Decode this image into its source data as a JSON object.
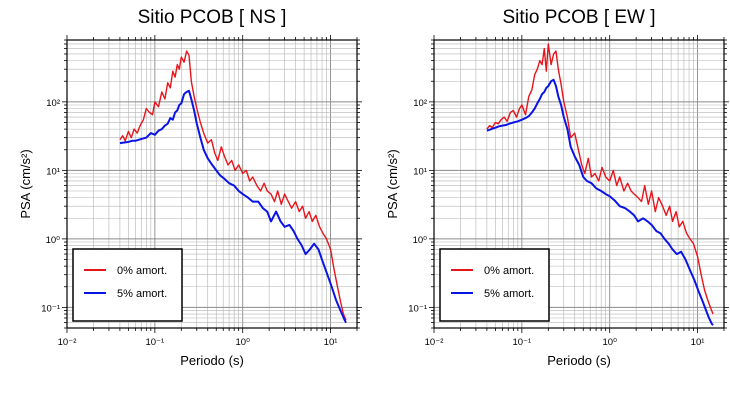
{
  "chart_data": [
    {
      "type": "line",
      "title": "Sitio PCOB [ NS ]",
      "xlabel": "Periodo (s)",
      "ylabel": "PSA (cm/s²)",
      "x_scale": "log",
      "y_scale": "log",
      "xlim": [
        0.01,
        20
      ],
      "ylim": [
        0.05,
        800
      ],
      "x_ticks": [
        "10⁻²",
        "10⁻¹",
        "10⁰",
        "10¹"
      ],
      "y_ticks": [
        "10⁻¹",
        "10⁰",
        "10¹",
        "10²"
      ],
      "grid": true,
      "legend_position": "bottom-left",
      "series": [
        {
          "name": "0% amort.",
          "color": "#e8141b",
          "x": [
            0.04,
            0.043,
            0.046,
            0.05,
            0.054,
            0.058,
            0.063,
            0.068,
            0.074,
            0.08,
            0.087,
            0.094,
            0.1,
            0.11,
            0.12,
            0.13,
            0.14,
            0.15,
            0.16,
            0.17,
            0.18,
            0.19,
            0.2,
            0.215,
            0.23,
            0.245,
            0.26,
            0.28,
            0.3,
            0.33,
            0.36,
            0.4,
            0.44,
            0.48,
            0.52,
            0.57,
            0.62,
            0.68,
            0.75,
            0.82,
            0.9,
            1.0,
            1.1,
            1.2,
            1.3,
            1.45,
            1.6,
            1.75,
            1.9,
            2.1,
            2.3,
            2.5,
            2.75,
            3.0,
            3.3,
            3.6,
            4.0,
            4.4,
            4.8,
            5.2,
            5.7,
            6.2,
            6.8,
            7.5,
            8.2,
            9.0,
            10.0,
            11.0,
            12.0,
            13.0,
            14.0,
            15.0
          ],
          "values": [
            28,
            32,
            27,
            37,
            30,
            40,
            35,
            45,
            55,
            80,
            70,
            65,
            100,
            85,
            140,
            110,
            190,
            160,
            280,
            230,
            350,
            300,
            450,
            380,
            550,
            480,
            200,
            120,
            80,
            50,
            35,
            25,
            28,
            18,
            14,
            22,
            16,
            12,
            14,
            10,
            12,
            9,
            10,
            7,
            8,
            6,
            5,
            6.5,
            5,
            4.5,
            3.5,
            5,
            3.2,
            4.5,
            3.5,
            2.8,
            3.5,
            2.5,
            3,
            2,
            2.5,
            1.8,
            2.2,
            1.5,
            1.2,
            1.0,
            0.7,
            0.35,
            0.2,
            0.12,
            0.08,
            0.065
          ]
        },
        {
          "name": "5% amort.",
          "color": "#0a14e6",
          "x": [
            0.04,
            0.045,
            0.05,
            0.055,
            0.06,
            0.066,
            0.072,
            0.08,
            0.09,
            0.1,
            0.11,
            0.12,
            0.13,
            0.14,
            0.15,
            0.16,
            0.17,
            0.18,
            0.19,
            0.2,
            0.215,
            0.23,
            0.245,
            0.26,
            0.28,
            0.3,
            0.33,
            0.36,
            0.4,
            0.45,
            0.5,
            0.55,
            0.62,
            0.7,
            0.8,
            0.9,
            1.0,
            1.15,
            1.3,
            1.5,
            1.7,
            1.9,
            2.1,
            2.4,
            2.7,
            3.0,
            3.4,
            3.8,
            4.2,
            4.7,
            5.2,
            5.8,
            6.5,
            7.3,
            8.2,
            9.2,
            10.3,
            11.5,
            12.5,
            13.5,
            14.5,
            15.0
          ],
          "values": [
            25,
            25.5,
            26,
            27,
            27,
            28,
            29,
            30,
            35,
            33,
            38,
            40,
            45,
            48,
            58,
            55,
            70,
            75,
            90,
            95,
            130,
            140,
            145,
            110,
            75,
            48,
            30,
            20,
            15,
            12,
            10,
            8.5,
            7.5,
            6.5,
            6,
            5,
            4.5,
            4,
            3.5,
            3.5,
            2.8,
            2.5,
            1.8,
            2.5,
            1.8,
            1.5,
            1.6,
            1.3,
            1.0,
            0.8,
            0.6,
            0.7,
            0.85,
            0.7,
            0.45,
            0.3,
            0.2,
            0.13,
            0.1,
            0.08,
            0.065,
            0.06
          ]
        }
      ]
    },
    {
      "type": "line",
      "title": "Sitio PCOB [ EW ]",
      "xlabel": "Periodo (s)",
      "ylabel": "PSA (cm/s²)",
      "x_scale": "log",
      "y_scale": "log",
      "xlim": [
        0.01,
        20
      ],
      "ylim": [
        0.05,
        800
      ],
      "x_ticks": [
        "10⁻²",
        "10⁻¹",
        "10⁰",
        "10¹"
      ],
      "y_ticks": [
        "10⁻¹",
        "10⁰",
        "10¹",
        "10²"
      ],
      "grid": true,
      "legend_position": "bottom-left",
      "series": [
        {
          "name": "0% amort.",
          "color": "#e8141b",
          "x": [
            0.04,
            0.043,
            0.046,
            0.05,
            0.054,
            0.058,
            0.063,
            0.068,
            0.074,
            0.08,
            0.087,
            0.094,
            0.1,
            0.11,
            0.12,
            0.13,
            0.14,
            0.15,
            0.16,
            0.17,
            0.18,
            0.19,
            0.2,
            0.215,
            0.23,
            0.245,
            0.26,
            0.28,
            0.3,
            0.33,
            0.36,
            0.4,
            0.44,
            0.48,
            0.52,
            0.57,
            0.62,
            0.68,
            0.75,
            0.82,
            0.9,
            1.0,
            1.1,
            1.2,
            1.3,
            1.45,
            1.6,
            1.75,
            1.9,
            2.1,
            2.3,
            2.5,
            2.75,
            3.0,
            3.3,
            3.6,
            4.0,
            4.4,
            4.8,
            5.2,
            5.7,
            6.2,
            6.8,
            7.5,
            8.2,
            9.0,
            10.0,
            11.0,
            12.0,
            13.0,
            14.0,
            15.0
          ],
          "values": [
            40,
            45,
            42,
            50,
            48,
            55,
            60,
            52,
            70,
            75,
            60,
            80,
            90,
            65,
            120,
            150,
            250,
            300,
            400,
            350,
            600,
            280,
            700,
            350,
            500,
            550,
            300,
            180,
            100,
            60,
            30,
            35,
            20,
            12,
            9,
            15,
            8,
            9,
            7,
            11,
            8,
            7,
            10,
            6,
            8,
            5,
            6.5,
            5,
            4.5,
            4,
            3.5,
            6,
            3.2,
            5,
            2.5,
            4,
            3,
            2.2,
            3,
            1.8,
            2.5,
            1.5,
            1.8,
            1.2,
            1.0,
            0.85,
            0.55,
            0.3,
            0.18,
            0.13,
            0.1,
            0.08
          ]
        },
        {
          "name": "5% amort.",
          "color": "#0a14e6",
          "x": [
            0.04,
            0.045,
            0.05,
            0.055,
            0.06,
            0.066,
            0.072,
            0.08,
            0.09,
            0.1,
            0.11,
            0.12,
            0.13,
            0.14,
            0.15,
            0.16,
            0.17,
            0.18,
            0.19,
            0.2,
            0.215,
            0.23,
            0.245,
            0.26,
            0.28,
            0.3,
            0.33,
            0.36,
            0.4,
            0.45,
            0.5,
            0.55,
            0.62,
            0.7,
            0.8,
            0.9,
            1.0,
            1.15,
            1.3,
            1.5,
            1.7,
            1.9,
            2.1,
            2.4,
            2.7,
            3.0,
            3.4,
            3.8,
            4.2,
            4.7,
            5.2,
            5.8,
            6.5,
            7.3,
            8.2,
            9.2,
            10.3,
            11.5,
            12.5,
            13.5,
            14.5,
            15.0
          ],
          "values": [
            38,
            40,
            42,
            44,
            45,
            46,
            48,
            50,
            52,
            55,
            58,
            62,
            70,
            80,
            95,
            110,
            130,
            140,
            160,
            170,
            200,
            210,
            170,
            120,
            90,
            60,
            40,
            22,
            16,
            12,
            8,
            7,
            6.5,
            5.5,
            5,
            4.5,
            4.2,
            3.6,
            3,
            2.8,
            2.5,
            2.2,
            1.8,
            2,
            1.8,
            1.6,
            1.3,
            1.2,
            1.0,
            0.85,
            0.7,
            0.6,
            0.65,
            0.5,
            0.35,
            0.25,
            0.17,
            0.12,
            0.09,
            0.07,
            0.058,
            0.055
          ]
        }
      ]
    }
  ]
}
